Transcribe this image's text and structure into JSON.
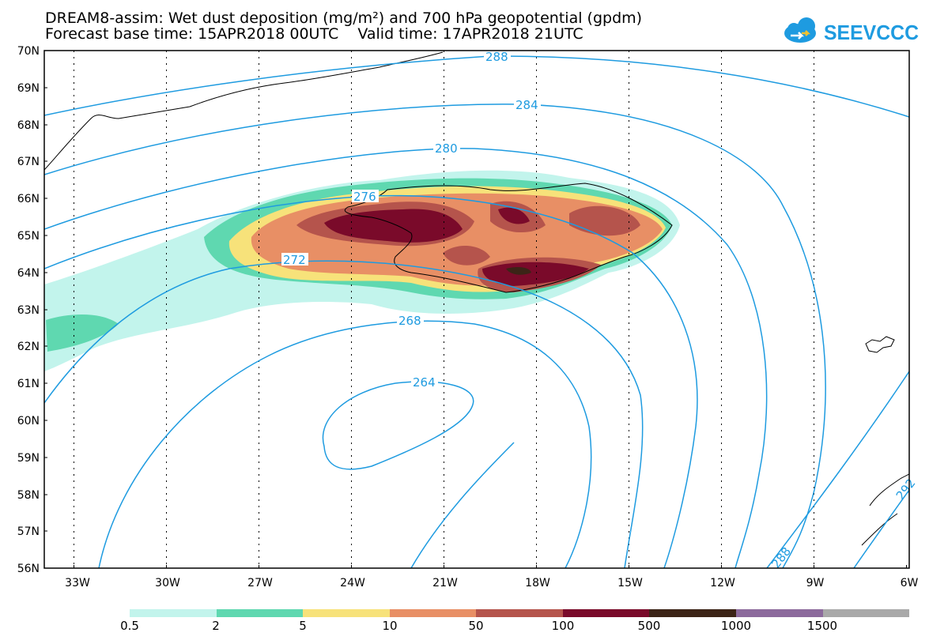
{
  "title": {
    "line1": "DREAM8-assim: Wet dust deposition (mg/m²) and 700 hPa geopotential (gpdm)",
    "line2": "Forecast base time: 15APR2018 00UTC    Valid time: 17APR2018 21UTC"
  },
  "logo": {
    "text": "SEEVCCC",
    "icon": "cloud-icon",
    "color": "#1e9be0"
  },
  "map": {
    "lon_range": [
      -34,
      -6
    ],
    "lat_range": [
      56,
      70
    ],
    "lat_ticks": [
      "70N",
      "69N",
      "68N",
      "67N",
      "66N",
      "65N",
      "64N",
      "63N",
      "62N",
      "61N",
      "60N",
      "59N",
      "58N",
      "57N",
      "56N"
    ],
    "lon_ticks": [
      "33W",
      "30W",
      "27W",
      "24W",
      "21W",
      "18W",
      "15W",
      "12W",
      "9W",
      "6W"
    ],
    "contour_color": "#1e9be0",
    "contour_labels": [
      "288",
      "284",
      "280",
      "276",
      "272",
      "268",
      "264",
      "288",
      "292"
    ]
  },
  "legend": {
    "colors": [
      "#c2f4ec",
      "#5fd8b0",
      "#f7e27a",
      "#e88f65",
      "#b5544c",
      "#7a0a2a",
      "#3c2417",
      "#8c6a9c",
      "#a9a9a9"
    ],
    "labels": [
      "0.5",
      "2",
      "5",
      "10",
      "50",
      "100",
      "500",
      "1000",
      "1500"
    ]
  }
}
